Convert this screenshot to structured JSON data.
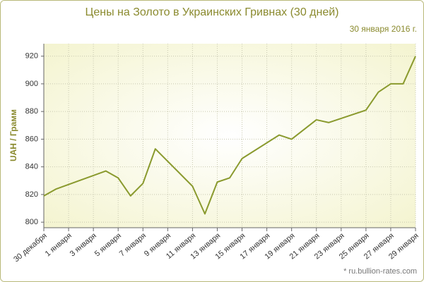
{
  "chart_data": {
    "type": "line",
    "title": "Цены на Золото в Украинских Гривнах (30 дней)",
    "subtitle": "30 января 2016 г.",
    "y_label": "UAH / Грамм",
    "source": "* ru.bullion-rates.com",
    "x": [
      "30 декабря",
      "31 декабря",
      "4 января",
      "5 января",
      "6 января",
      "7 января",
      "8 января",
      "11 января",
      "12 января",
      "13 января",
      "14 января",
      "15 января",
      "18 января",
      "19 января",
      "21 января",
      "22 января",
      "25 января",
      "26 января",
      "27 января",
      "28 января",
      "29 января"
    ],
    "series": [
      {
        "name": "UAH / Грамм",
        "color": "#8a9a2e",
        "values": [
          819,
          824,
          837,
          832,
          819,
          828,
          853,
          826,
          806,
          829,
          832,
          846,
          863,
          860,
          874,
          872,
          881,
          894,
          900,
          900,
          920
        ]
      }
    ],
    "xticks": [
      "30 декабря",
      "1 января",
      "3 января",
      "5 января",
      "7 января",
      "9 января",
      "11 января",
      "13 января",
      "15 января",
      "17 января",
      "19 января",
      "21 января",
      "23 января",
      "25 января",
      "27 января",
      "29 января"
    ],
    "ylim": [
      796,
      929
    ],
    "yticks": [
      800,
      820,
      840,
      860,
      880,
      900,
      920
    ],
    "grid": true
  }
}
